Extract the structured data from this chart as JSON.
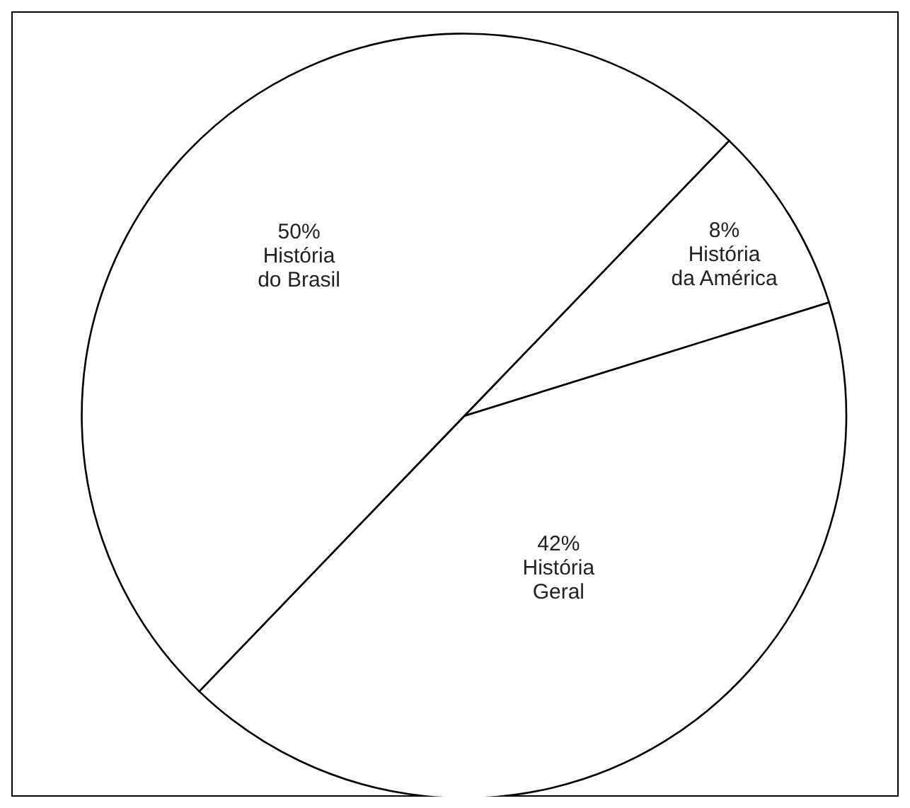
{
  "chart_data": {
    "type": "pie",
    "categories": [
      "História da América",
      "História Geral",
      "História do Brasil"
    ],
    "values": [
      8,
      42,
      50
    ],
    "colors": [
      "#ffffff",
      "#ffffff",
      "#ffffff"
    ],
    "value_labels": [
      "8%",
      "42%",
      "50%"
    ]
  }
}
